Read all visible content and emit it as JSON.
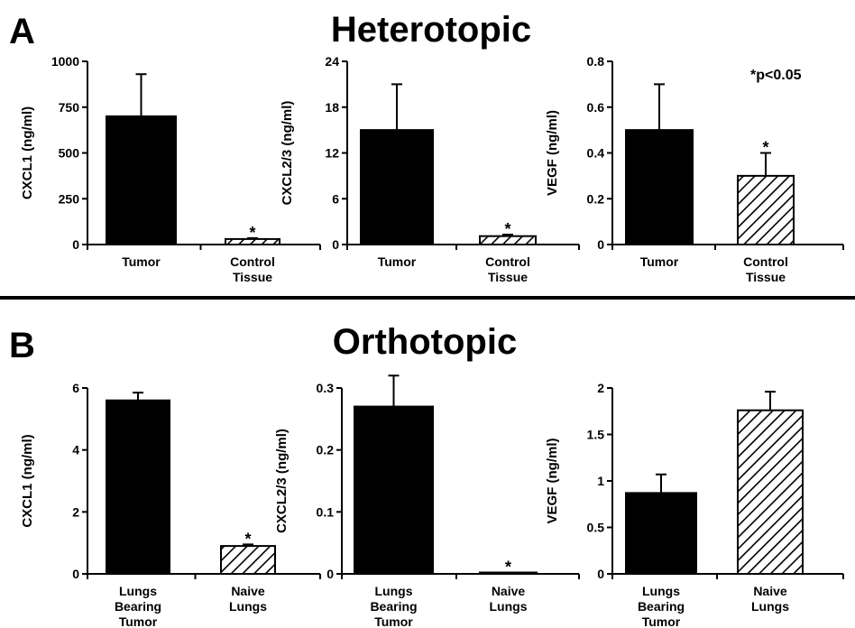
{
  "panels": [
    {
      "letter": "A",
      "title": "Heterotopic"
    },
    {
      "letter": "B",
      "title": "Orthotopic"
    }
  ],
  "significance_note": "*p<0.05",
  "chart_data": [
    {
      "type": "bar",
      "panel": "A",
      "ylabel": "CXCL1 (ng/ml)",
      "ylim": [
        0,
        1000
      ],
      "ticks": [
        0,
        250,
        500,
        750,
        1000
      ],
      "tick_labels": [
        "0",
        "250",
        "500",
        "750",
        "1000"
      ],
      "categories": [
        [
          "Tumor"
        ],
        [
          "Control",
          "Tissue"
        ]
      ],
      "values": [
        700,
        30
      ],
      "errors": [
        230,
        5
      ],
      "fills": [
        "solid",
        "hatched"
      ],
      "significant": [
        false,
        true
      ]
    },
    {
      "type": "bar",
      "panel": "A",
      "ylabel": "CXCL2/3 (ng/ml)",
      "ylim": [
        0,
        24
      ],
      "ticks": [
        0,
        6,
        12,
        18,
        24
      ],
      "tick_labels": [
        "0",
        "6",
        "12",
        "18",
        "24"
      ],
      "categories": [
        [
          "Tumor"
        ],
        [
          "Control",
          "Tissue"
        ]
      ],
      "values": [
        15,
        1.1
      ],
      "errors": [
        6,
        0.2
      ],
      "fills": [
        "solid",
        "hatched"
      ],
      "significant": [
        false,
        true
      ]
    },
    {
      "type": "bar",
      "panel": "A",
      "ylabel": "VEGF (ng/ml)",
      "ylim": [
        0,
        0.8
      ],
      "ticks": [
        0,
        0.2,
        0.4,
        0.6,
        0.8
      ],
      "tick_labels": [
        "0",
        "0.2",
        "0.4",
        "0.6",
        "0.8"
      ],
      "categories": [
        [
          "Tumor"
        ],
        [
          "Control",
          "Tissue"
        ]
      ],
      "values": [
        0.5,
        0.3
      ],
      "errors": [
        0.2,
        0.1
      ],
      "fills": [
        "solid",
        "hatched"
      ],
      "significant": [
        false,
        true
      ]
    },
    {
      "type": "bar",
      "panel": "B",
      "ylabel": "CXCL1 (ng/ml)",
      "ylim": [
        0,
        6
      ],
      "ticks": [
        0,
        2,
        4,
        6
      ],
      "tick_labels": [
        "0",
        "2",
        "4",
        "6"
      ],
      "categories": [
        [
          "Lungs",
          "Bearing",
          "Tumor"
        ],
        [
          "Naive",
          "Lungs"
        ]
      ],
      "values": [
        5.6,
        0.9
      ],
      "errors": [
        0.25,
        0.05
      ],
      "fills": [
        "solid",
        "hatched"
      ],
      "significant": [
        false,
        true
      ]
    },
    {
      "type": "bar",
      "panel": "B",
      "ylabel": "CXCL2/3 (ng/ml)",
      "ylim": [
        0,
        0.3
      ],
      "ticks": [
        0,
        0.1,
        0.2,
        0.3
      ],
      "tick_labels": [
        "0",
        "0.1",
        "0.2",
        "0.3"
      ],
      "categories": [
        [
          "Lungs",
          "Bearing",
          "Tumor"
        ],
        [
          "Naive",
          "Lungs"
        ]
      ],
      "values": [
        0.27,
        0.002
      ],
      "errors": [
        0.05,
        0
      ],
      "fills": [
        "solid",
        "hatched"
      ],
      "significant": [
        false,
        true
      ]
    },
    {
      "type": "bar",
      "panel": "B",
      "ylabel": "VEGF (ng/ml)",
      "ylim": [
        0,
        2
      ],
      "ticks": [
        0,
        0.5,
        1,
        1.5,
        2
      ],
      "tick_labels": [
        "0",
        "0.5",
        "1",
        "1.5",
        "2"
      ],
      "categories": [
        [
          "Lungs",
          "Bearing",
          "Tumor"
        ],
        [
          "Naive",
          "Lungs"
        ]
      ],
      "values": [
        0.87,
        1.76
      ],
      "errors": [
        0.2,
        0.2
      ],
      "fills": [
        "solid",
        "hatched"
      ],
      "significant": [
        false,
        false
      ]
    }
  ]
}
